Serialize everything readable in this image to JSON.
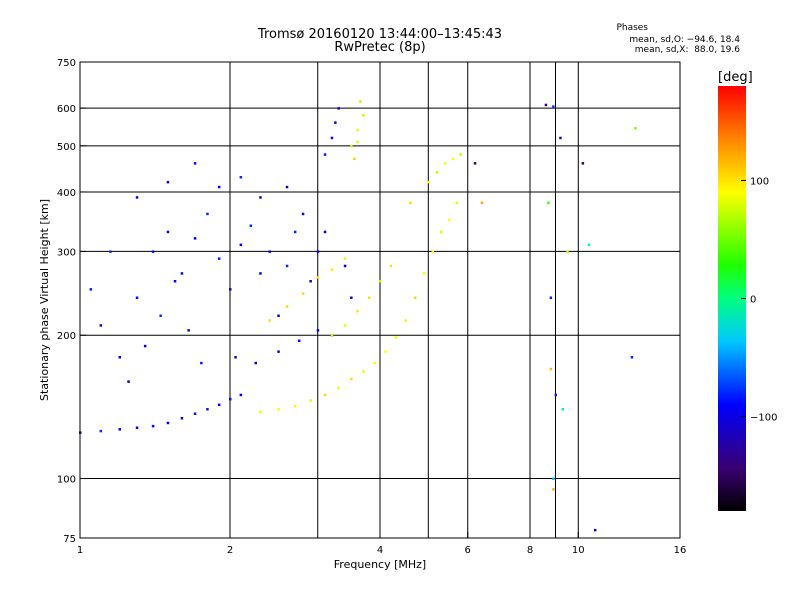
{
  "chart_data": {
    "type": "scatter",
    "title": "Tromsø 20160120 13:44:00–13:45:43",
    "subtitle": "RwPretec (8p)",
    "xlabel": "Frequency [MHz]",
    "ylabel": "Stationary phase Virtual Height [km]",
    "x_scale": "log",
    "y_scale": "log",
    "xlim": [
      1,
      16
    ],
    "ylim": [
      75,
      750
    ],
    "x_ticks": [
      "1",
      "2",
      "4",
      "6",
      "8",
      "10",
      "16"
    ],
    "x_tick_values": [
      1,
      2,
      4,
      6,
      8,
      10,
      16
    ],
    "y_ticks": [
      "75",
      "100",
      "200",
      "300",
      "400",
      "500",
      "600",
      "750"
    ],
    "y_tick_values": [
      75,
      100,
      200,
      300,
      400,
      500,
      600,
      750
    ],
    "grid": true,
    "colorbar": {
      "label": "[deg]",
      "ticks": [
        "100",
        "0",
        "-100"
      ],
      "tick_values": [
        100,
        0,
        -100
      ],
      "range": [
        -180,
        180
      ]
    },
    "phases": {
      "title": "Phases",
      "o_mode": "mean, sd,O: −94.6, 18.4",
      "x_mode": "mean, sd,X:  88.0, 19.6"
    },
    "series": [
      {
        "color_group": "o-mode",
        "phase_mean": -94.6,
        "phase_sd": 18.4,
        "points": [
          [
            1.0,
            125
          ],
          [
            1.1,
            126
          ],
          [
            1.2,
            127
          ],
          [
            1.3,
            128
          ],
          [
            1.4,
            129
          ],
          [
            1.5,
            131
          ],
          [
            1.6,
            134
          ],
          [
            1.7,
            137
          ],
          [
            1.8,
            140
          ],
          [
            1.9,
            143
          ],
          [
            2.0,
            147
          ],
          [
            2.1,
            150
          ],
          [
            1.05,
            250
          ],
          [
            1.1,
            210
          ],
          [
            1.2,
            180
          ],
          [
            1.3,
            240
          ],
          [
            1.4,
            300
          ],
          [
            1.5,
            330
          ],
          [
            1.6,
            270
          ],
          [
            1.7,
            320
          ],
          [
            1.8,
            360
          ],
          [
            1.9,
            290
          ],
          [
            2.0,
            250
          ],
          [
            2.1,
            310
          ],
          [
            2.2,
            340
          ],
          [
            2.3,
            270
          ],
          [
            2.4,
            300
          ],
          [
            2.5,
            220
          ],
          [
            2.6,
            280
          ],
          [
            2.7,
            330
          ],
          [
            2.9,
            260
          ],
          [
            3.0,
            300
          ],
          [
            3.1,
            480
          ],
          [
            3.2,
            520
          ],
          [
            3.25,
            560
          ],
          [
            3.3,
            600
          ],
          [
            1.25,
            160
          ],
          [
            1.35,
            190
          ],
          [
            1.45,
            220
          ],
          [
            1.55,
            260
          ],
          [
            1.65,
            205
          ],
          [
            1.75,
            175
          ],
          [
            2.05,
            180
          ],
          [
            2.25,
            175
          ],
          [
            2.5,
            185
          ],
          [
            2.75,
            195
          ],
          [
            3.0,
            205
          ],
          [
            3.2,
            200
          ],
          [
            1.15,
            300
          ],
          [
            1.3,
            390
          ],
          [
            1.5,
            420
          ],
          [
            1.7,
            460
          ],
          [
            1.9,
            410
          ],
          [
            2.1,
            430
          ],
          [
            2.3,
            390
          ],
          [
            2.6,
            410
          ],
          [
            2.8,
            360
          ],
          [
            3.1,
            330
          ],
          [
            3.4,
            280
          ],
          [
            3.5,
            240
          ]
        ]
      },
      {
        "color_group": "x-mode",
        "phase_mean": 88.0,
        "phase_sd": 19.6,
        "points": [
          [
            2.3,
            138
          ],
          [
            2.5,
            140
          ],
          [
            2.7,
            142
          ],
          [
            2.9,
            146
          ],
          [
            3.1,
            150
          ],
          [
            3.3,
            155
          ],
          [
            3.5,
            162
          ],
          [
            3.7,
            168
          ],
          [
            3.9,
            175
          ],
          [
            4.1,
            185
          ],
          [
            4.3,
            198
          ],
          [
            4.5,
            215
          ],
          [
            4.7,
            240
          ],
          [
            4.9,
            270
          ],
          [
            5.1,
            300
          ],
          [
            5.3,
            330
          ],
          [
            5.5,
            350
          ],
          [
            5.7,
            380
          ],
          [
            3.2,
            200
          ],
          [
            3.4,
            210
          ],
          [
            3.6,
            225
          ],
          [
            3.8,
            240
          ],
          [
            4.0,
            260
          ],
          [
            4.2,
            280
          ],
          [
            3.5,
            500
          ],
          [
            3.6,
            540
          ],
          [
            3.7,
            580
          ],
          [
            3.65,
            620
          ],
          [
            3.55,
            470
          ],
          [
            3.6,
            510
          ],
          [
            5.0,
            420
          ],
          [
            5.2,
            440
          ],
          [
            5.4,
            460
          ],
          [
            5.6,
            470
          ],
          [
            5.8,
            480
          ],
          [
            4.6,
            380
          ],
          [
            2.4,
            215
          ],
          [
            2.6,
            230
          ],
          [
            2.8,
            245
          ],
          [
            3.0,
            265
          ],
          [
            3.2,
            275
          ],
          [
            3.4,
            290
          ]
        ]
      },
      {
        "color_group": "scattered",
        "points": [
          [
            8.6,
            610
          ],
          [
            8.9,
            605
          ],
          [
            9.2,
            520
          ],
          [
            10.2,
            460
          ],
          [
            8.7,
            380
          ],
          [
            8.8,
            240
          ],
          [
            9.5,
            300
          ],
          [
            10.5,
            310
          ],
          [
            13.0,
            545
          ],
          [
            12.8,
            180
          ],
          [
            8.8,
            170
          ],
          [
            9.0,
            150
          ],
          [
            8.9,
            100
          ],
          [
            8.9,
            95
          ],
          [
            10.8,
            78
          ],
          [
            9.3,
            140
          ],
          [
            6.2,
            460
          ],
          [
            6.4,
            380
          ]
        ]
      }
    ]
  }
}
